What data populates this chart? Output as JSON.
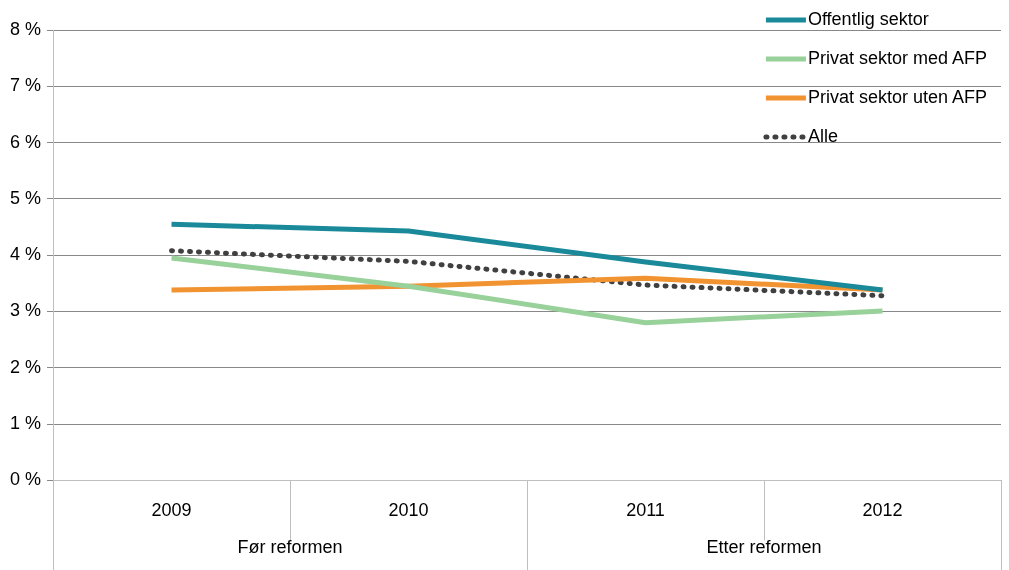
{
  "chart_data": {
    "type": "line",
    "categories": [
      "2009",
      "2010",
      "2011",
      "2012"
    ],
    "series": [
      {
        "name": "Offentlig sektor",
        "color": "#1a8a9a",
        "values": [
          4.55,
          4.43,
          3.88,
          3.38
        ]
      },
      {
        "name": "Privat sektor med AFP",
        "color": "#98d19a",
        "values": [
          3.95,
          3.45,
          2.8,
          3.01
        ]
      },
      {
        "name": "Privat sektor uten AFP",
        "color": "#f19330",
        "values": [
          3.38,
          3.45,
          3.59,
          3.38
        ]
      },
      {
        "name": "Alle",
        "color": "#404040",
        "line_style": "dotted",
        "values": [
          4.08,
          3.89,
          3.47,
          3.28
        ]
      }
    ],
    "ylim": [
      0,
      8
    ],
    "yticks": [
      {
        "value": 0,
        "label": "0 %"
      },
      {
        "value": 1,
        "label": "1 %"
      },
      {
        "value": 2,
        "label": "2 %"
      },
      {
        "value": 3,
        "label": "3 %"
      },
      {
        "value": 4,
        "label": "4 %"
      },
      {
        "value": 5,
        "label": "5 %"
      },
      {
        "value": 6,
        "label": "6 %"
      },
      {
        "value": 7,
        "label": "7 %"
      },
      {
        "value": 8,
        "label": "8 %"
      }
    ],
    "annotations": [
      "Før reformen",
      "Etter reformen"
    ],
    "grid": "y",
    "legend": "top right",
    "marker": "none",
    "line_style": "solid"
  }
}
